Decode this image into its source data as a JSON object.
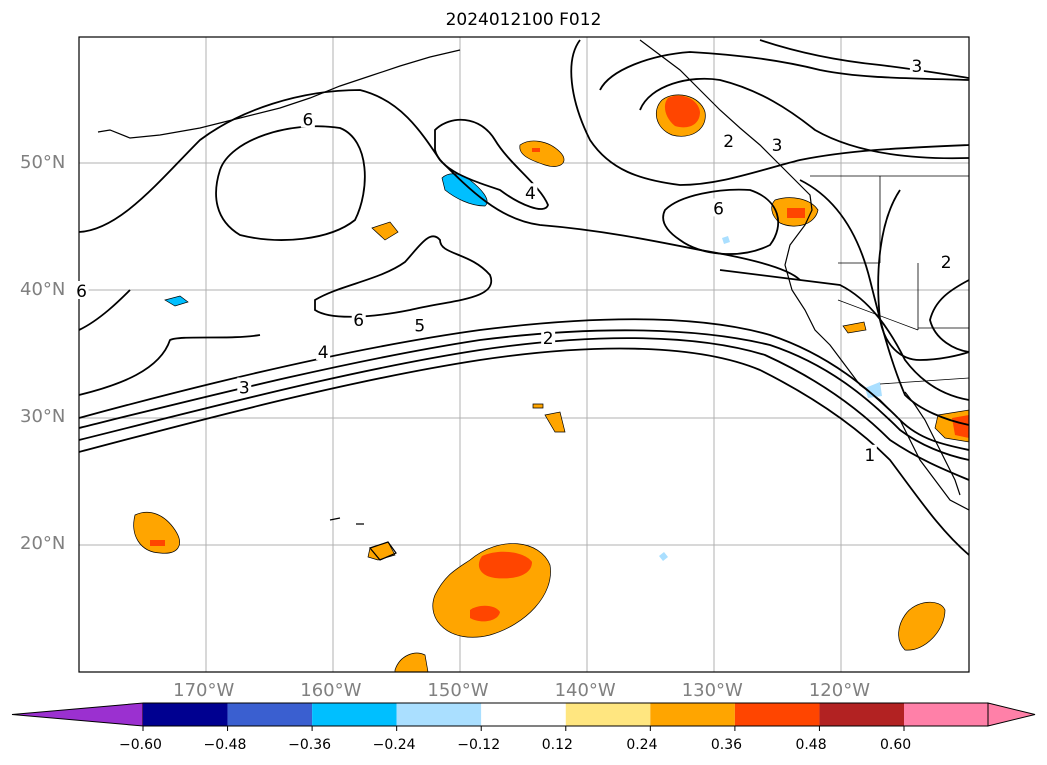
{
  "title": "2024012100 F012",
  "map": {
    "lat_ticks": [
      {
        "label": "50°N",
        "value": 50
      },
      {
        "label": "40°N",
        "value": 40
      },
      {
        "label": "30°N",
        "value": 30
      },
      {
        "label": "20°N",
        "value": 20
      }
    ],
    "lon_ticks": [
      {
        "label": "170°W",
        "value": -170
      },
      {
        "label": "160°W",
        "value": -160
      },
      {
        "label": "150°W",
        "value": -150
      },
      {
        "label": "140°W",
        "value": -140
      },
      {
        "label": "130°W",
        "value": -130
      },
      {
        "label": "120°W",
        "value": -120
      }
    ],
    "grid": true,
    "extent": {
      "lon": [
        -180,
        -110
      ],
      "lat": [
        10,
        60
      ]
    }
  },
  "contour_labels": [
    {
      "text": "6",
      "lon": -162,
      "lat": 53.5
    },
    {
      "text": "4",
      "lon": -144.5,
      "lat": 47.7
    },
    {
      "text": "6",
      "lon": -179.8,
      "lat": 40
    },
    {
      "text": "6",
      "lon": -158,
      "lat": 37.7
    },
    {
      "text": "5",
      "lon": -153.2,
      "lat": 37.3
    },
    {
      "text": "4",
      "lon": -160.8,
      "lat": 35.2
    },
    {
      "text": "3",
      "lon": -167,
      "lat": 32.4
    },
    {
      "text": "2",
      "lon": -143.1,
      "lat": 36.3
    },
    {
      "text": "6",
      "lon": -129.7,
      "lat": 46.5
    },
    {
      "text": "2",
      "lon": -128.9,
      "lat": 51.8
    },
    {
      "text": "3",
      "lon": -125.1,
      "lat": 51.5
    },
    {
      "text": "3",
      "lon": -114.1,
      "lat": 57.7
    },
    {
      "text": "2",
      "lon": -111.8,
      "lat": 42.3
    },
    {
      "text": "1",
      "lon": -117.8,
      "lat": 27.1
    }
  ],
  "colorbar": {
    "ticks": [
      "−0.60",
      "−0.48",
      "−0.36",
      "−0.24",
      "−0.12",
      "0.12",
      "0.24",
      "0.36",
      "0.48",
      "0.60"
    ],
    "colors": [
      "#9b30d0",
      "#000090",
      "#3a5fd0",
      "#00bfff",
      "#aadfff",
      "#ffffff",
      "#ffe680",
      "#ffa500",
      "#ff4500",
      "#b22222",
      "#ff80a8",
      "#ff80a8"
    ],
    "under_color": "#9b30d0",
    "over_color": "#ff80a8"
  }
}
